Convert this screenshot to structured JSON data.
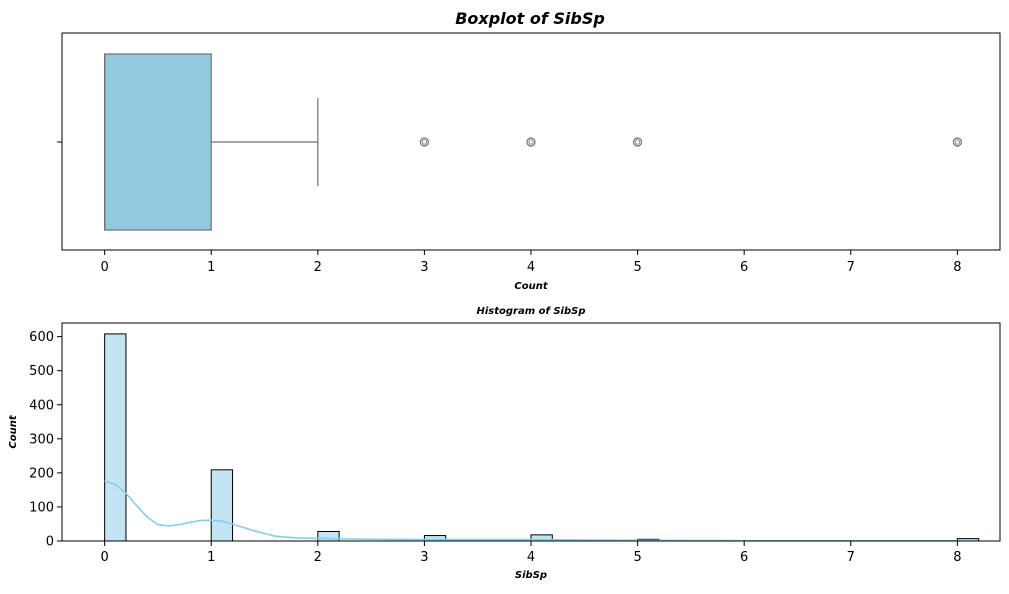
{
  "chart_data": [
    {
      "type": "box",
      "title": "Boxplot of SibSp",
      "xlabel": "Count",
      "ylabel": "",
      "xlim": [
        -0.4,
        8.4
      ],
      "xticks": [
        0,
        1,
        2,
        3,
        4,
        5,
        6,
        7,
        8
      ],
      "colors": {
        "box": "#93c9df",
        "edge": "#707070"
      },
      "box": {
        "q1": 0,
        "median": 0,
        "q3": 1,
        "whisker_low": 0,
        "whisker_high": 2
      },
      "outliers": [
        3,
        4,
        5,
        8
      ]
    },
    {
      "type": "bar",
      "title": "Histogram of SibSp",
      "xlabel": "SibSp",
      "ylabel": "Count",
      "xlim": [
        -0.4,
        8.4
      ],
      "ylim": [
        0,
        640
      ],
      "xticks": [
        0,
        1,
        2,
        3,
        4,
        5,
        6,
        7,
        8
      ],
      "yticks": [
        0,
        100,
        200,
        300,
        400,
        500,
        600
      ],
      "colors": {
        "bar": "#c3e4f3",
        "edge": "#000000",
        "kde": "#87ceeb"
      },
      "bin_width": 0.2,
      "bins": [
        {
          "x": 0,
          "count": 608
        },
        {
          "x": 1,
          "count": 209
        },
        {
          "x": 2,
          "count": 28
        },
        {
          "x": 3,
          "count": 16
        },
        {
          "x": 4,
          "count": 18
        },
        {
          "x": 5,
          "count": 5
        },
        {
          "x": 8,
          "count": 7
        }
      ],
      "kde": {
        "x": [
          0,
          0.1,
          0.2,
          0.3,
          0.4,
          0.5,
          0.6,
          0.7,
          0.8,
          0.9,
          1.0,
          1.1,
          1.2,
          1.4,
          1.6,
          1.8,
          2.0,
          2.3,
          2.6,
          3.0,
          3.5,
          4.0,
          4.5,
          5.0,
          6.0,
          7.0,
          8.0
        ],
        "y": [
          176,
          166,
          140,
          104,
          70,
          48,
          44,
          48,
          55,
          60,
          61,
          58,
          50,
          30,
          14,
          9,
          8,
          6,
          5,
          4,
          4,
          4,
          3,
          2,
          1,
          1,
          1
        ]
      }
    }
  ]
}
